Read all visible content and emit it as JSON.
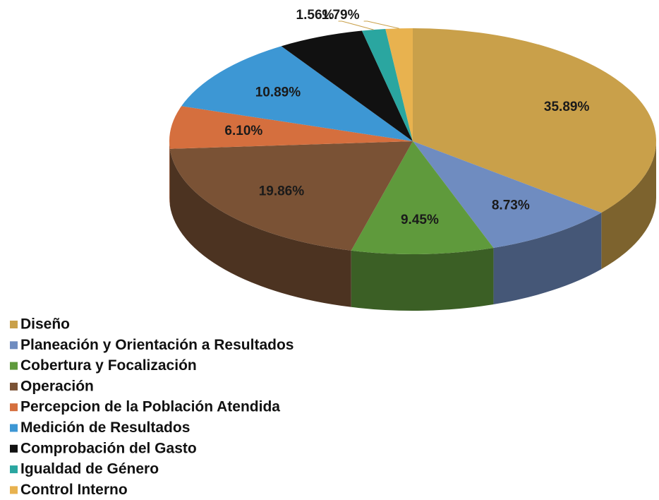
{
  "chart_data": {
    "type": "pie",
    "categories": [
      "Diseño",
      "Planeación y Orientación a Resultados",
      "Cobertura y Focalización",
      "Operación",
      "Percepcion de la Población Atendida",
      "Medición de Resultados",
      "Comprobación del Gasto",
      "Igualdad de Género",
      "Control Interno"
    ],
    "values": [
      35.89,
      8.73,
      9.45,
      19.86,
      6.1,
      10.89,
      5.73,
      1.56,
      1.79
    ],
    "value_labels": [
      "35.89%",
      "8.73%",
      "9.45%",
      "19.86%",
      "6.10%",
      "10.89%",
      null,
      "1.56%",
      "1.79%"
    ],
    "colors": [
      "#c9a04a",
      "#6f8cc0",
      "#5f9a3c",
      "#7a5235",
      "#d56f3e",
      "#3d97d4",
      "#111111",
      "#2aa6a0",
      "#e8b24f"
    ]
  }
}
